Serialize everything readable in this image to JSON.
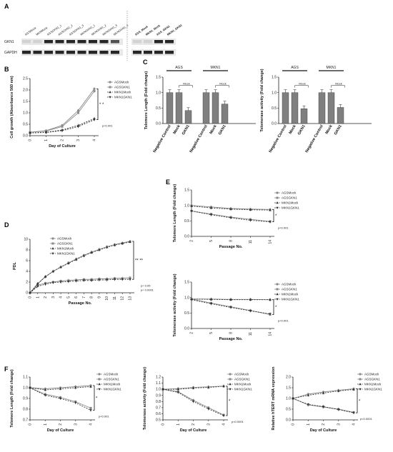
{
  "figure": {
    "panels": {
      "A": {
        "label": "A",
        "lanes_left": [
          "AGSMock",
          "MKNMock",
          "AGSGKN1_1",
          "AGSGKN1_2",
          "AGSGKN1_3",
          "MKNGKN1_1",
          "MKNGKN1_2",
          "MKNGKN1_3",
          "MKNGKN1_4"
        ],
        "lanes_right": [
          "AGS_Mock",
          "MKN1_Mock",
          "AGS_GKN1",
          "MKN1_GKN1"
        ],
        "rows": [
          "GKN1",
          "GAPDH"
        ]
      },
      "B": {
        "label": "B"
      },
      "C": {
        "label": "C",
        "groups": [
          "AGS",
          "MKN1"
        ],
        "mock_tag": "Mock"
      },
      "D": {
        "label": "D"
      },
      "E": {
        "label": "E"
      },
      "F": {
        "label": "F"
      }
    }
  },
  "chart_data": [
    {
      "id": "B",
      "type": "line",
      "ylabel": "Cell growth (Absorbance 560 nm)",
      "xlabel": "Day of Culture",
      "x": [
        0,
        1,
        2,
        3,
        4
      ],
      "xticks": [
        "0",
        "1",
        "2",
        "3",
        "4"
      ],
      "ylim": [
        0,
        2.5
      ],
      "yticks": [
        "0.0",
        "0.5",
        "1.0",
        "1.5",
        "2.0",
        "2.5"
      ],
      "series": [
        {
          "name": "AGSMock",
          "values": [
            0.15,
            0.22,
            0.45,
            1.1,
            2.05
          ]
        },
        {
          "name": "AGSGKN1",
          "values": [
            0.15,
            0.2,
            0.4,
            1.0,
            1.95
          ]
        },
        {
          "name": "MKN1Mock",
          "values": [
            0.12,
            0.15,
            0.25,
            0.45,
            0.75
          ]
        },
        {
          "name": "MKN1GKN1",
          "values": [
            0.12,
            0.14,
            0.22,
            0.4,
            0.7
          ]
        }
      ],
      "sig": "* *",
      "pnote": "p<0.001"
    },
    {
      "id": "C1",
      "type": "bar",
      "ylabel": "Telomere Length (Fold change)",
      "ylim": [
        0,
        1.5
      ],
      "yticks": [
        "0.0",
        "0.5",
        "1.0",
        "1.5"
      ],
      "categories": [
        "Negative Control",
        "Mock",
        "GKN1",
        "Negative Control",
        "Mock",
        "GKN1"
      ],
      "values": [
        1.0,
        1.0,
        0.42,
        1.0,
        1.0,
        0.63
      ]
    },
    {
      "id": "C2",
      "type": "bar",
      "ylabel": "Telomerase activity (Fold change)",
      "ylim": [
        0,
        1.5
      ],
      "yticks": [
        "0.0",
        "0.5",
        "1.0",
        "1.5"
      ],
      "categories": [
        "Negative Control",
        "Mock",
        "GKN1",
        "Negative Control",
        "Mock",
        "GKN1"
      ],
      "values": [
        1.0,
        1.0,
        0.48,
        1.0,
        1.0,
        0.52
      ]
    },
    {
      "id": "D",
      "type": "line",
      "ylabel": "PDL",
      "xlabel": "Passage No.",
      "x": [
        0,
        1,
        2,
        3,
        4,
        5,
        6,
        7,
        8,
        9,
        10,
        11,
        12,
        13
      ],
      "xticks": [
        "0",
        "1",
        "2",
        "3",
        "4",
        "5",
        "6",
        "7",
        "8",
        "9",
        "10",
        "11",
        "12",
        "13"
      ],
      "ylim": [
        0,
        10
      ],
      "yticks": [
        "0",
        "2",
        "4",
        "6",
        "8",
        "10"
      ],
      "series": [
        {
          "name": "AGSMock",
          "values": [
            0,
            1.7,
            3.0,
            4.0,
            4.8,
            5.6,
            6.3,
            7.0,
            7.6,
            8.1,
            8.6,
            9.0,
            9.3,
            9.6
          ]
        },
        {
          "name": "AGSGKN1",
          "values": [
            0,
            1.4,
            1.8,
            2.0,
            2.2,
            2.3,
            2.4,
            2.5,
            2.5,
            2.6,
            2.6,
            2.7,
            2.7,
            2.8
          ]
        },
        {
          "name": "MKN1Mock",
          "values": [
            0,
            1.7,
            3.0,
            4.0,
            4.8,
            5.5,
            6.2,
            6.9,
            7.5,
            8.0,
            8.5,
            8.9,
            9.2,
            9.5
          ]
        },
        {
          "name": "MKN1GKN1",
          "values": [
            0,
            1.2,
            1.6,
            1.9,
            2.0,
            2.1,
            2.2,
            2.3,
            2.3,
            2.4,
            2.4,
            2.5,
            2.5,
            2.5
          ]
        }
      ],
      "sig": "** **",
      "pnote": [
        "p< 0.05",
        "p< 0.0001"
      ]
    },
    {
      "id": "E1",
      "type": "line",
      "ylabel": "Telomere Length (Fold change)",
      "xlabel": "Passage No.",
      "x": [
        2,
        5,
        8,
        11,
        14
      ],
      "xticks": [
        "2",
        "5",
        "8",
        "11",
        "14"
      ],
      "ylim": [
        0,
        1.5
      ],
      "yticks": [
        "0.0",
        "0.5",
        "1.0",
        "1.5"
      ],
      "series": [
        {
          "name": "AGSMock",
          "values": [
            1.0,
            0.95,
            0.9,
            0.88,
            0.87
          ]
        },
        {
          "name": "AGSGKN1",
          "values": [
            0.82,
            0.72,
            0.62,
            0.55,
            0.48
          ]
        },
        {
          "name": "MKN1Mock",
          "values": [
            0.98,
            0.92,
            0.88,
            0.86,
            0.85
          ]
        },
        {
          "name": "MKN1GKN1",
          "values": [
            0.82,
            0.7,
            0.6,
            0.52,
            0.47
          ]
        }
      ],
      "sig": "*",
      "pnote": "p<0.001"
    },
    {
      "id": "E2",
      "type": "line",
      "ylabel": "Telomerase activity (Fold change)",
      "xlabel": "Passage No.",
      "x": [
        2,
        5,
        8,
        11,
        14
      ],
      "xticks": [
        "2",
        "5",
        "8",
        "11",
        "14"
      ],
      "ylim": [
        0,
        1.5
      ],
      "yticks": [
        "0.0",
        "0.5",
        "1.0",
        "1.5"
      ],
      "series": [
        {
          "name": "AGSMock",
          "values": [
            0.95,
            0.95,
            0.94,
            0.94,
            0.93
          ]
        },
        {
          "name": "AGSGKN1",
          "values": [
            0.95,
            0.82,
            0.7,
            0.58,
            0.45
          ]
        },
        {
          "name": "MKN1Mock",
          "values": [
            0.95,
            0.94,
            0.93,
            0.93,
            0.93
          ]
        },
        {
          "name": "MKN1GKN1",
          "values": [
            0.93,
            0.8,
            0.68,
            0.57,
            0.47
          ]
        }
      ],
      "sig": "*",
      "pnote": "p<0.001"
    },
    {
      "id": "F1",
      "type": "line",
      "ylabel": "Telomere Length (Fold change)",
      "xlabel": "Day of Culture",
      "x": [
        0,
        1,
        2,
        3,
        4
      ],
      "xticks": [
        "0",
        "1",
        "2",
        "3",
        "4"
      ],
      "ylim": [
        0.7,
        1.1
      ],
      "yticks": [
        "0.7",
        "0.8",
        "0.9",
        "1.0",
        "1.1"
      ],
      "series": [
        {
          "name": "AGSMock",
          "values": [
            1.0,
            0.99,
            1.0,
            1.01,
            1.02
          ]
        },
        {
          "name": "AGSGKN1",
          "values": [
            1.0,
            0.94,
            0.91,
            0.87,
            0.81
          ]
        },
        {
          "name": "MKN1Mock",
          "values": [
            1.0,
            0.98,
            0.99,
            1.0,
            1.01
          ]
        },
        {
          "name": "MKN1GKN1",
          "values": [
            1.0,
            0.93,
            0.9,
            0.86,
            0.79
          ]
        }
      ],
      "sig": "*",
      "pnote": "p<0.001"
    },
    {
      "id": "F2",
      "type": "line",
      "ylabel": "Telomerase activity (Fold change)",
      "xlabel": "Day of Culture",
      "x": [
        0,
        1,
        2,
        3,
        4
      ],
      "xticks": [
        "0",
        "1",
        "2",
        "3",
        "4"
      ],
      "ylim": [
        0.5,
        1.2
      ],
      "yticks": [
        "0.5",
        "0.6",
        "0.7",
        "0.8",
        "0.9",
        "1.0",
        "1.1",
        "1.2"
      ],
      "series": [
        {
          "name": "AGSMock",
          "values": [
            1.0,
            1.01,
            1.03,
            1.04,
            1.05
          ]
        },
        {
          "name": "AGSGKN1",
          "values": [
            1.0,
            0.96,
            0.82,
            0.7,
            0.58
          ]
        },
        {
          "name": "MKN1Mock",
          "values": [
            1.0,
            1.0,
            1.02,
            1.03,
            1.05
          ]
        },
        {
          "name": "MKN1GKN1",
          "values": [
            1.0,
            0.95,
            0.8,
            0.68,
            0.57
          ]
        }
      ],
      "sig": "*",
      "pnote": "p<0.0001"
    },
    {
      "id": "F3",
      "type": "line",
      "ylabel": "Relative hTERT mRNA expression",
      "xlabel": "Day of Culture",
      "x": [
        0,
        1,
        2,
        3,
        4
      ],
      "xticks": [
        "0",
        "1",
        "2",
        "3",
        "4"
      ],
      "ylim": [
        0,
        2
      ],
      "yticks": [
        "0.0",
        "0.5",
        "1.0",
        "1.5",
        "2.0"
      ],
      "series": [
        {
          "name": "AGSMock",
          "values": [
            1.0,
            1.2,
            1.3,
            1.38,
            1.45
          ]
        },
        {
          "name": "AGSGKN1",
          "values": [
            1.0,
            0.7,
            0.6,
            0.5,
            0.35
          ]
        },
        {
          "name": "MKN1Mock",
          "values": [
            1.0,
            1.15,
            1.25,
            1.35,
            1.42
          ]
        },
        {
          "name": "MKN1GKN1",
          "values": [
            1.0,
            0.72,
            0.62,
            0.48,
            0.33
          ]
        }
      ],
      "sig": "*",
      "pnote": "p<0.0001"
    }
  ]
}
